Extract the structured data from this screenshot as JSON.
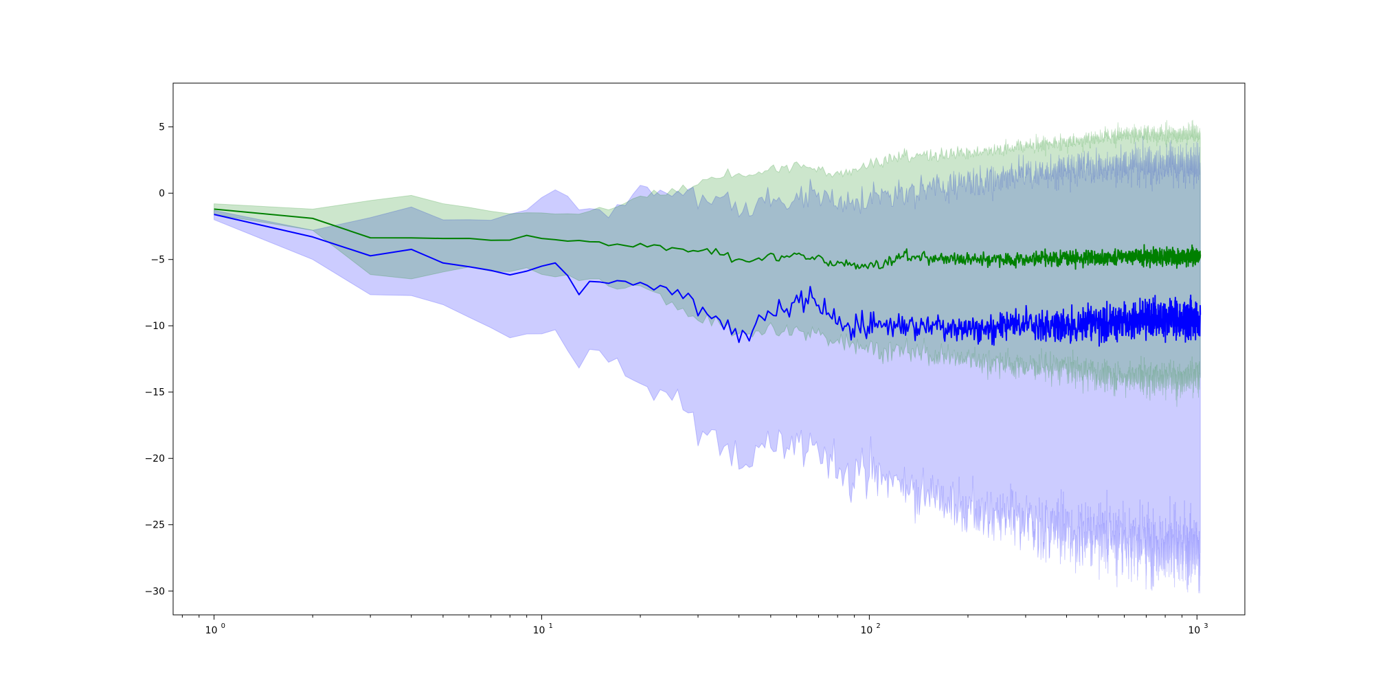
{
  "chart_data": {
    "type": "line",
    "title": "",
    "xlabel": "",
    "ylabel": "",
    "x_scale": "log",
    "xlim": [
      0.75,
      1400
    ],
    "ylim": [
      -31.8,
      8.3
    ],
    "grid": false,
    "legend": "none",
    "x_ticks": [
      1,
      10,
      100,
      1000
    ],
    "x_tick_labels": [
      {
        "base": "10",
        "exp": "0"
      },
      {
        "base": "10",
        "exp": "1"
      },
      {
        "base": "10",
        "exp": "2"
      },
      {
        "base": "10",
        "exp": "3"
      }
    ],
    "y_ticks": [
      5,
      0,
      -5,
      -10,
      -15,
      -20,
      -25,
      -30
    ],
    "y_tick_labels": [
      "5",
      "0",
      "−5",
      "−10",
      "−15",
      "−20",
      "−25",
      "−30"
    ],
    "x_range": [
      1,
      1024
    ],
    "series": [
      {
        "color": "#0000ff",
        "band_color": "#0000ff",
        "band_alpha": 0.2,
        "anchors": [
          {
            "x": 1,
            "mean": -1.6,
            "lower": -2.0,
            "upper": -1.3
          },
          {
            "x": 2,
            "mean": -3.3,
            "lower": -5.0,
            "upper": -2.8
          },
          {
            "x": 3,
            "mean": -4.8,
            "lower": -7.8,
            "upper": -1.9
          },
          {
            "x": 4,
            "mean": -4.3,
            "lower": -7.7,
            "upper": -1.0
          },
          {
            "x": 5,
            "mean": -5.5,
            "lower": -8.8,
            "upper": -2.2
          },
          {
            "x": 7,
            "mean": -5.7,
            "lower": -9.9,
            "upper": -1.8
          },
          {
            "x": 9,
            "mean": -5.8,
            "lower": -10.5,
            "upper": -1.2
          },
          {
            "x": 11,
            "mean": -5.4,
            "lower": -11.0,
            "upper": 0.2
          },
          {
            "x": 13,
            "mean": -7.6,
            "lower": -13.2,
            "upper": -1.0
          },
          {
            "x": 16,
            "mean": -6.7,
            "lower": -12.5,
            "upper": -1.5
          },
          {
            "x": 20,
            "mean": -6.6,
            "lower": -14.2,
            "upper": 0.5
          },
          {
            "x": 25,
            "mean": -7.6,
            "lower": -15.5,
            "upper": -0.5
          },
          {
            "x": 30,
            "mean": -8.5,
            "lower": -17.5,
            "upper": -0.3
          },
          {
            "x": 40,
            "mean": -10.8,
            "lower": -20.5,
            "upper": -0.8
          },
          {
            "x": 50,
            "mean": -9.0,
            "lower": -18.5,
            "upper": -0.7
          },
          {
            "x": 65,
            "mean": -8.0,
            "lower": -19.5,
            "upper": -0.3
          },
          {
            "x": 80,
            "mean": -9.5,
            "lower": -20.5,
            "upper": -0.5
          },
          {
            "x": 100,
            "mean": -10.0,
            "lower": -21.0,
            "upper": -0.4
          },
          {
            "x": 130,
            "mean": -9.8,
            "lower": -22.0,
            "upper": 0.2
          },
          {
            "x": 170,
            "mean": -10.0,
            "lower": -23.0,
            "upper": 0.5
          },
          {
            "x": 220,
            "mean": -10.0,
            "lower": -24.0,
            "upper": 1.0
          },
          {
            "x": 300,
            "mean": -10.0,
            "lower": -25.0,
            "upper": 1.3
          },
          {
            "x": 400,
            "mean": -10.0,
            "lower": -25.5,
            "upper": 1.8
          },
          {
            "x": 550,
            "mean": -9.8,
            "lower": -26.0,
            "upper": 2.0
          },
          {
            "x": 700,
            "mean": -9.5,
            "lower": -26.5,
            "upper": 2.2
          },
          {
            "x": 850,
            "mean": -9.5,
            "lower": -27.0,
            "upper": 2.3
          },
          {
            "x": 1024,
            "mean": -9.5,
            "lower": -27.0,
            "upper": 2.3
          }
        ]
      },
      {
        "color": "#008000",
        "band_color": "#008000",
        "band_alpha": 0.2,
        "anchors": [
          {
            "x": 1,
            "mean": -1.2,
            "lower": -1.6,
            "upper": -0.8
          },
          {
            "x": 2,
            "mean": -1.9,
            "lower": -2.8,
            "upper": -1.2
          },
          {
            "x": 3,
            "mean": -3.4,
            "lower": -6.2,
            "upper": -0.6
          },
          {
            "x": 4,
            "mean": -3.4,
            "lower": -6.5,
            "upper": -0.2
          },
          {
            "x": 6,
            "mean": -3.5,
            "lower": -5.8,
            "upper": -1.2
          },
          {
            "x": 9,
            "mean": -3.4,
            "lower": -6.0,
            "upper": -1.5
          },
          {
            "x": 12,
            "mean": -3.5,
            "lower": -6.2,
            "upper": -1.6
          },
          {
            "x": 16,
            "mean": -3.8,
            "lower": -7.0,
            "upper": -1.2
          },
          {
            "x": 20,
            "mean": -4.0,
            "lower": -7.0,
            "upper": -0.3
          },
          {
            "x": 30,
            "mean": -4.3,
            "lower": -9.5,
            "upper": 0.7
          },
          {
            "x": 40,
            "mean": -5.0,
            "lower": -10.5,
            "upper": 1.5
          },
          {
            "x": 60,
            "mean": -4.8,
            "lower": -10.5,
            "upper": 2.0
          },
          {
            "x": 80,
            "mean": -5.2,
            "lower": -11.0,
            "upper": 1.5
          },
          {
            "x": 100,
            "mean": -5.4,
            "lower": -11.5,
            "upper": 2.2
          },
          {
            "x": 130,
            "mean": -4.8,
            "lower": -12.0,
            "upper": 2.8
          },
          {
            "x": 200,
            "mean": -5.0,
            "lower": -12.5,
            "upper": 3.0
          },
          {
            "x": 300,
            "mean": -5.0,
            "lower": -13.0,
            "upper": 3.5
          },
          {
            "x": 450,
            "mean": -4.9,
            "lower": -13.5,
            "upper": 4.0
          },
          {
            "x": 600,
            "mean": -4.8,
            "lower": -14.0,
            "upper": 4.5
          },
          {
            "x": 800,
            "mean": -4.8,
            "lower": -14.0,
            "upper": 4.5
          },
          {
            "x": 1024,
            "mean": -4.8,
            "lower": -14.0,
            "upper": 4.5
          }
        ]
      }
    ]
  }
}
